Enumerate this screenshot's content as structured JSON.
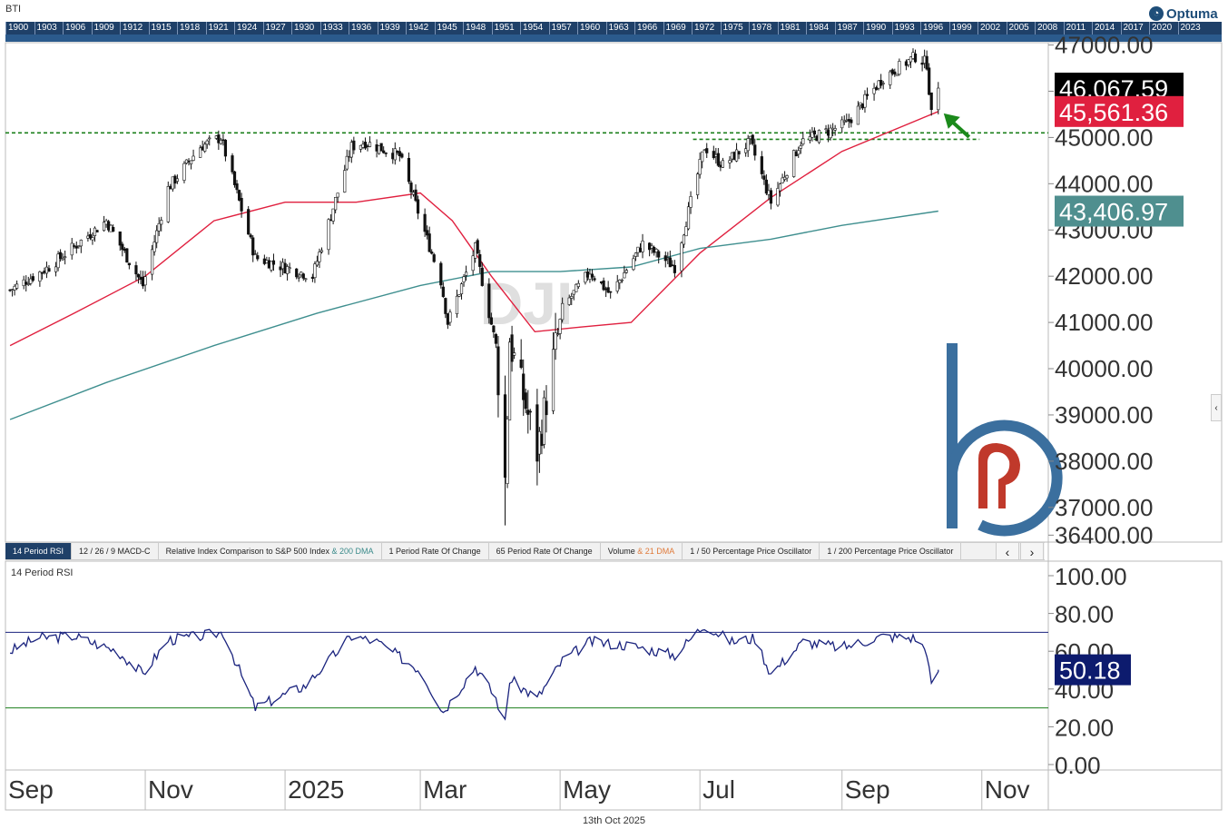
{
  "header": {
    "symbol": "BTI",
    "brand": "Optuma",
    "brand_icon": "optuma-logo-icon",
    "timeline_years": [
      "1900",
      "1903",
      "1906",
      "1909",
      "1912",
      "1915",
      "1918",
      "1921",
      "1924",
      "1927",
      "1930",
      "1933",
      "1936",
      "1939",
      "1942",
      "1945",
      "1948",
      "1951",
      "1954",
      "1957",
      "1960",
      "1963",
      "1966",
      "1969",
      "1972",
      "1975",
      "1978",
      "1981",
      "1984",
      "1987",
      "1990",
      "1993",
      "1996",
      "1999",
      "2002",
      "2005",
      "2008",
      "2011",
      "2014",
      "2017",
      "2020",
      "2023"
    ]
  },
  "watermark": "DJI",
  "footer": {
    "date": "13th Oct 2025"
  },
  "tabs": {
    "items": [
      {
        "label": "14 Period RSI",
        "sub": "",
        "active": true
      },
      {
        "label": "12 / 26 / 9 MACD-C",
        "sub": ""
      },
      {
        "label": "Relative Index Comparison to S&P 500 Index",
        "sub": "& 200 DMA"
      },
      {
        "label": "1 Period Rate Of Change",
        "sub": ""
      },
      {
        "label": "65 Period Rate Of Change",
        "sub": ""
      },
      {
        "label": "Volume",
        "sub2": "& 21 DMA"
      },
      {
        "label": "1 / 50 Percentage Price Oscillator",
        "sub": ""
      },
      {
        "label": "1 / 200 Percentage Price Oscillator",
        "sub": ""
      }
    ],
    "prev_icon": "chevron-left-icon",
    "next_icon": "chevron-right-icon"
  },
  "side_toggle_icon": "chevron-left-icon",
  "chart_data": [
    {
      "type": "candlestick",
      "name": "DJI",
      "y_ticks": [
        47000,
        46000,
        45000,
        44000,
        43000,
        42000,
        41000,
        40000,
        39000,
        38000,
        37000,
        36400
      ],
      "y_tick_labels": [
        "47000.00",
        "46000.00",
        "45000.00",
        "44000.00",
        "43000.00",
        "42000.00",
        "41000.00",
        "40000.00",
        "39000.00",
        "38000.00",
        "37000.00",
        "36400.00"
      ],
      "ylim": [
        36250,
        47050
      ],
      "x_labels": [
        "Sep",
        "Nov",
        "2025",
        "Mar",
        "May",
        "Jul",
        "Sep",
        "Nov"
      ],
      "x_range": [
        "2024-09-01",
        "2025-11-30"
      ],
      "x_label_dates": [
        "2024-09-01",
        "2024-11-01",
        "2025-01-01",
        "2025-03-01",
        "2025-05-01",
        "2025-07-01",
        "2025-09-01",
        "2025-11-01"
      ],
      "price_keypoints": [
        [
          "2024-09-03",
          41700
        ],
        [
          "2024-09-20",
          42200
        ],
        [
          "2024-10-15",
          43200
        ],
        [
          "2024-10-31",
          41800
        ],
        [
          "2024-11-11",
          43900
        ],
        [
          "2024-11-25",
          44800
        ],
        [
          "2024-12-04",
          45000
        ],
        [
          "2024-12-19",
          42400
        ],
        [
          "2025-01-13",
          42000
        ],
        [
          "2025-01-30",
          44800
        ],
        [
          "2025-02-05",
          44900
        ],
        [
          "2025-02-20",
          44600
        ],
        [
          "2025-03-10",
          41900
        ],
        [
          "2025-03-13",
          41000
        ],
        [
          "2025-03-25",
          42600
        ],
        [
          "2025-04-03",
          40500
        ],
        [
          "2025-04-07",
          37600
        ],
        [
          "2025-04-09",
          40600
        ],
        [
          "2025-04-21",
          38200
        ],
        [
          "2025-05-02",
          41300
        ],
        [
          "2025-05-14",
          42100
        ],
        [
          "2025-05-23",
          41600
        ],
        [
          "2025-06-06",
          42700
        ],
        [
          "2025-06-20",
          42200
        ],
        [
          "2025-07-03",
          44800
        ],
        [
          "2025-07-11",
          44400
        ],
        [
          "2025-07-23",
          44900
        ],
        [
          "2025-08-01",
          43600
        ],
        [
          "2025-08-14",
          44900
        ],
        [
          "2025-09-03",
          45300
        ],
        [
          "2025-09-19",
          46300
        ],
        [
          "2025-10-03",
          46750
        ],
        [
          "2025-10-08",
          46600
        ],
        [
          "2025-10-10",
          45480
        ],
        [
          "2025-10-13",
          46067.59
        ]
      ],
      "extremes": [
        [
          "2025-04-07",
          36611
        ],
        [
          "2025-10-03",
          46900
        ]
      ],
      "last_candle": {
        "date": "2025-10-13",
        "open": 45600,
        "high": 46200,
        "low": 45500,
        "close": 46067.59
      },
      "series": [
        {
          "name": "",
          "color": "#e0203f",
          "points": [
            [
              "2024-09-03",
              40500
            ],
            [
              "2024-10-01",
              41200
            ],
            [
              "2024-11-01",
              42000
            ],
            [
              "2024-12-01",
              43200
            ],
            [
              "2025-01-01",
              43600
            ],
            [
              "2025-02-01",
              43600
            ],
            [
              "2025-03-01",
              43800
            ],
            [
              "2025-03-15",
              43200
            ],
            [
              "2025-04-01",
              42000
            ],
            [
              "2025-04-20",
              40800
            ],
            [
              "2025-05-10",
              40900
            ],
            [
              "2025-06-01",
              41000
            ],
            [
              "2025-07-01",
              42500
            ],
            [
              "2025-08-01",
              43700
            ],
            [
              "2025-09-01",
              44700
            ],
            [
              "2025-10-13",
              45561.36
            ]
          ]
        },
        {
          "name": "",
          "color": "#3f8f8f",
          "points": [
            [
              "2024-09-03",
              38900
            ],
            [
              "2024-10-15",
              39700
            ],
            [
              "2024-12-01",
              40500
            ],
            [
              "2025-01-15",
              41200
            ],
            [
              "2025-03-01",
              41800
            ],
            [
              "2025-04-01",
              42100
            ],
            [
              "2025-05-01",
              42100
            ],
            [
              "2025-06-01",
              42200
            ],
            [
              "2025-07-01",
              42600
            ],
            [
              "2025-08-01",
              42800
            ],
            [
              "2025-09-01",
              43100
            ],
            [
              "2025-10-13",
              43406.97
            ]
          ]
        }
      ],
      "support_lines": [
        45100,
        44960
      ],
      "last_labels": [
        {
          "value": "46,067.59",
          "bg": "#000000",
          "y": 46067.59
        },
        {
          "value": "45,561.36",
          "bg": "#e0203f",
          "y": 45561.36
        },
        {
          "value": "43,406.97",
          "bg": "#4f8f8f",
          "y": 43406.97
        }
      ]
    },
    {
      "type": "line",
      "name": "",
      "title": "14 Period RSI",
      "color": "#1a237e",
      "y_ticks": [
        100,
        80,
        60,
        40,
        20,
        0
      ],
      "y_tick_labels": [
        "100.00",
        "80.00",
        "60.00",
        "40.00",
        "20.00",
        "0.00"
      ],
      "ylim": [
        0,
        100
      ],
      "levels": [
        70,
        30
      ],
      "points": [
        [
          "2024-09-03",
          60
        ],
        [
          "2024-09-15",
          67
        ],
        [
          "2024-10-01",
          68
        ],
        [
          "2024-10-20",
          60
        ],
        [
          "2024-10-31",
          48
        ],
        [
          "2024-11-11",
          66
        ],
        [
          "2024-11-25",
          68
        ],
        [
          "2024-12-05",
          70
        ],
        [
          "2024-12-19",
          30
        ],
        [
          "2025-01-10",
          42
        ],
        [
          "2025-01-30",
          68
        ],
        [
          "2025-02-10",
          65
        ],
        [
          "2025-03-01",
          50
        ],
        [
          "2025-03-11",
          28
        ],
        [
          "2025-03-25",
          52
        ],
        [
          "2025-04-03",
          35
        ],
        [
          "2025-04-07",
          22
        ],
        [
          "2025-04-09",
          45
        ],
        [
          "2025-04-21",
          35
        ],
        [
          "2025-05-02",
          55
        ],
        [
          "2025-05-14",
          65
        ],
        [
          "2025-06-01",
          63
        ],
        [
          "2025-06-20",
          58
        ],
        [
          "2025-07-03",
          74
        ],
        [
          "2025-07-15",
          65
        ],
        [
          "2025-07-25",
          67
        ],
        [
          "2025-08-01",
          48
        ],
        [
          "2025-08-15",
          65
        ],
        [
          "2025-09-01",
          62
        ],
        [
          "2025-09-19",
          68
        ],
        [
          "2025-10-03",
          67
        ],
        [
          "2025-10-08",
          60
        ],
        [
          "2025-10-10",
          41
        ],
        [
          "2025-10-13",
          50.18
        ]
      ],
      "last_label": {
        "value": "50.18",
        "bg": "#0d1b6e",
        "y": 50.18
      }
    }
  ]
}
